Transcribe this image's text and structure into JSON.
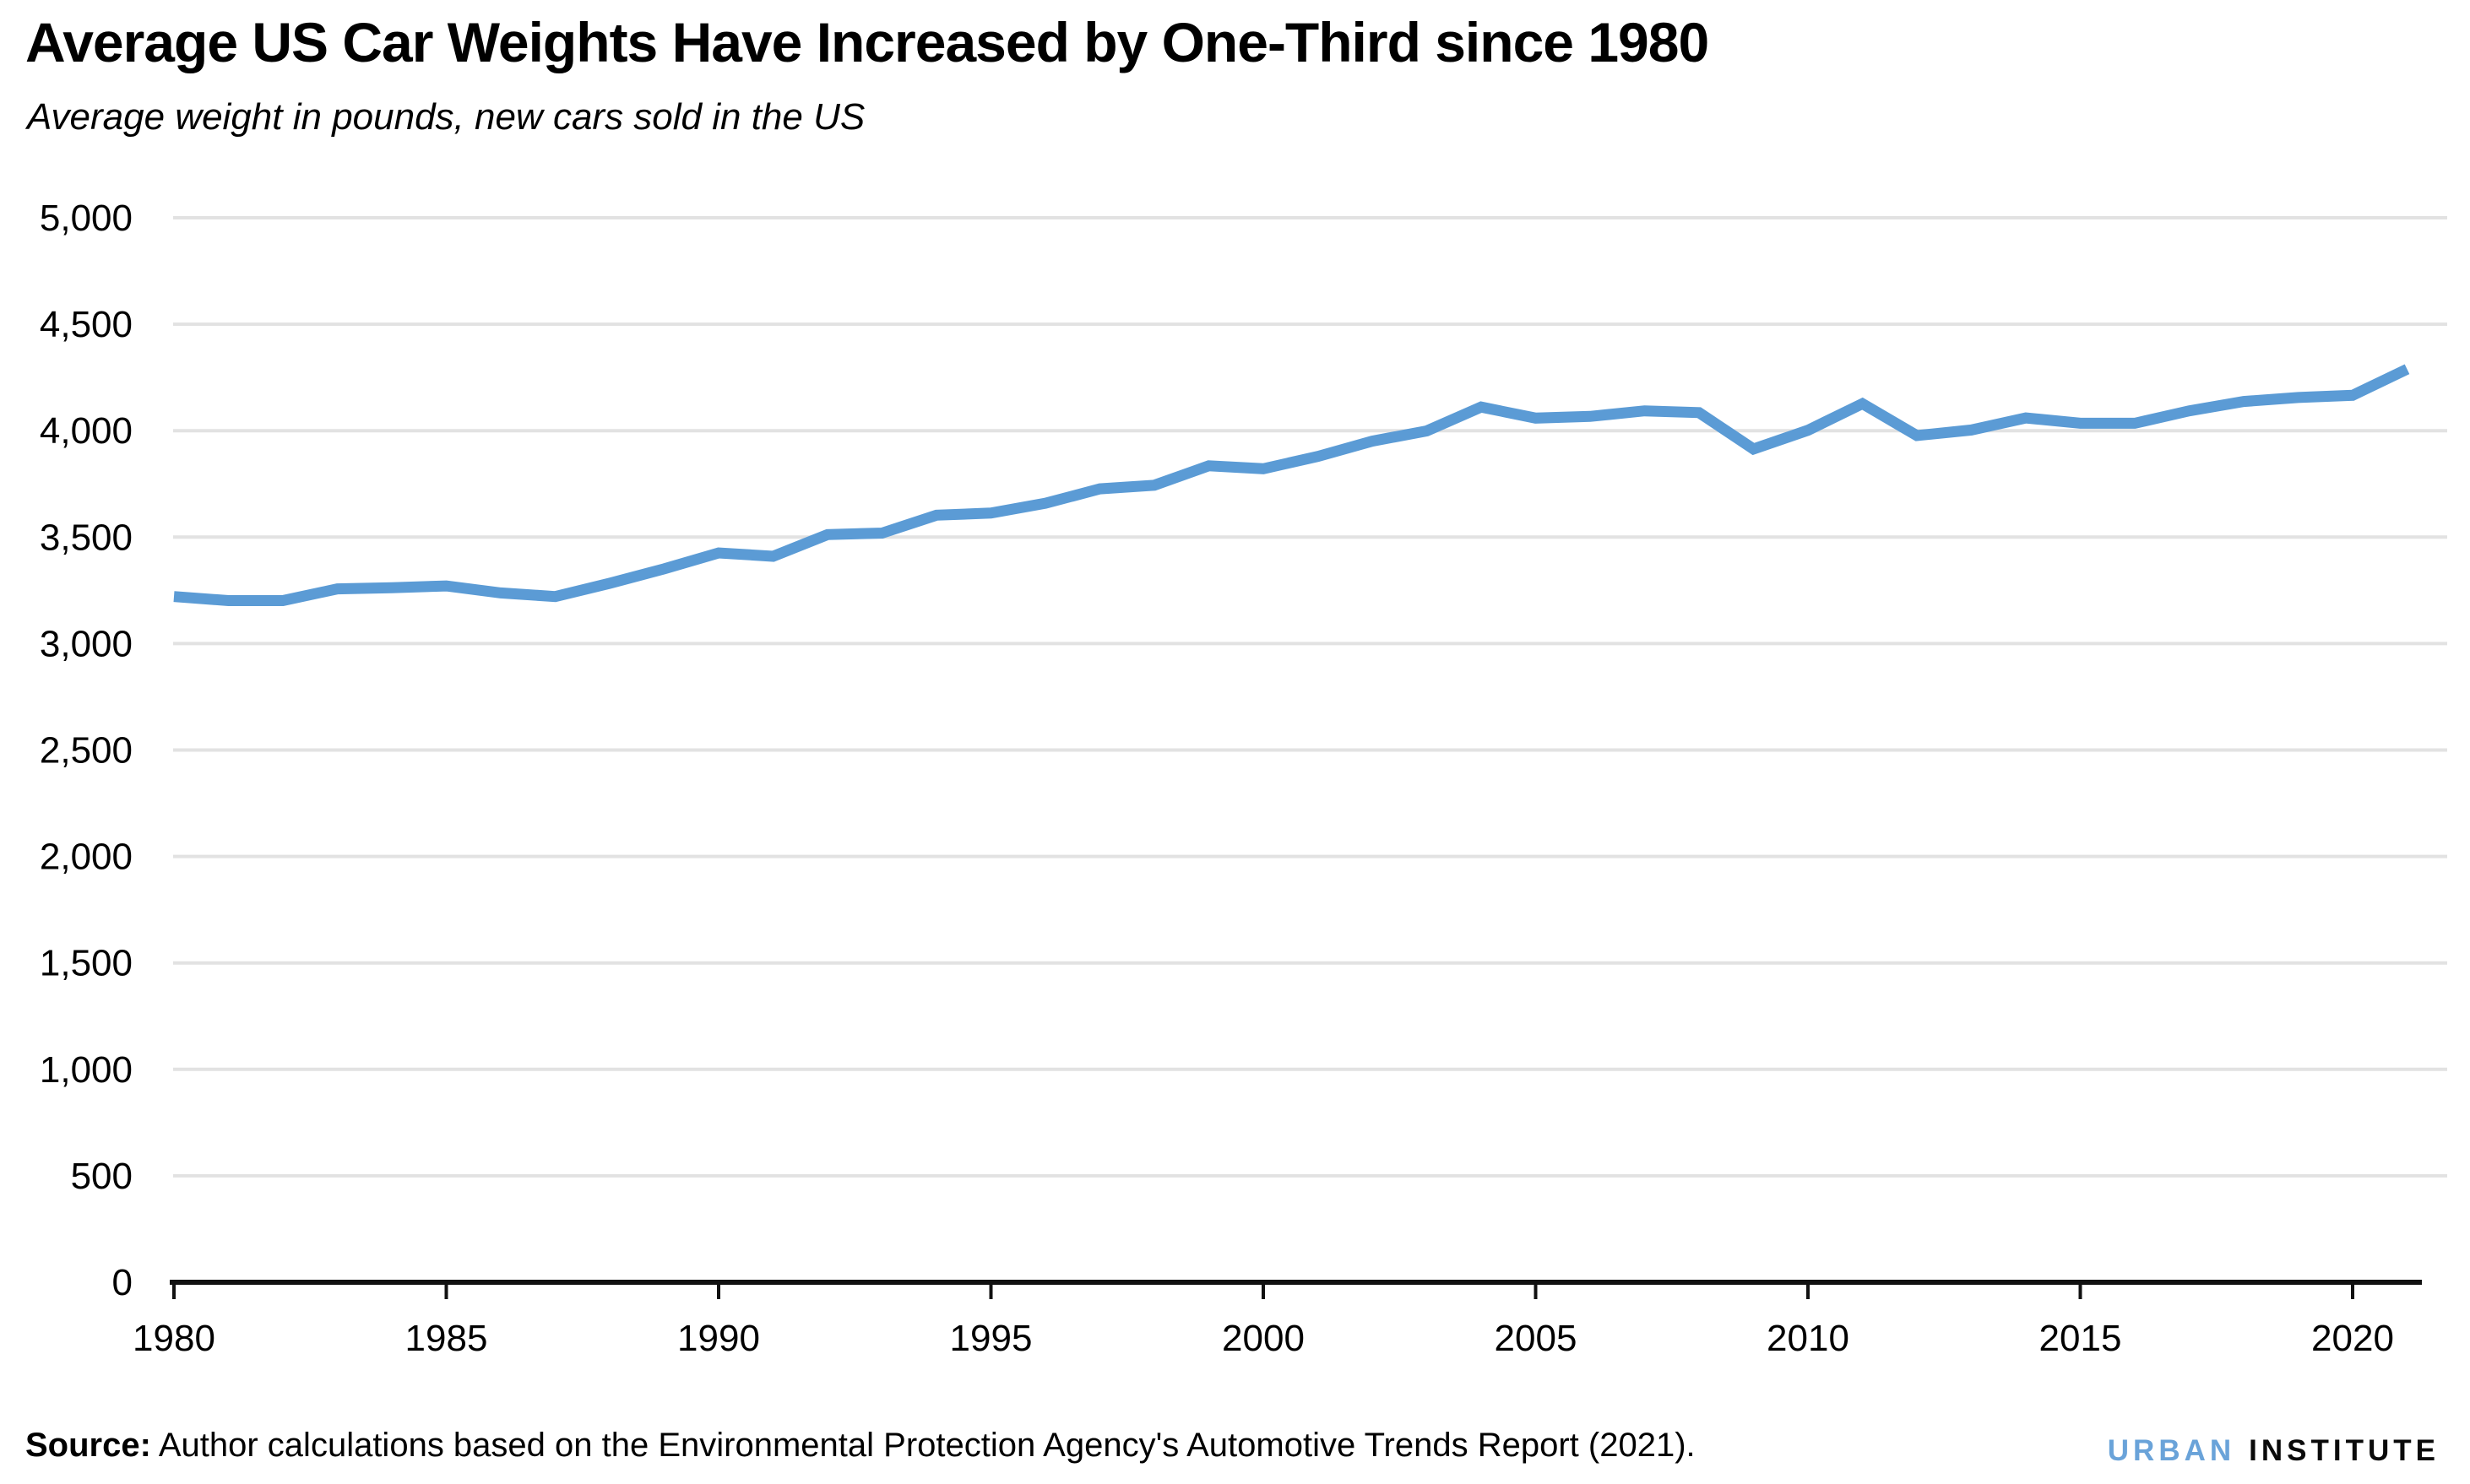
{
  "header": {
    "title": "Average US Car Weights Have Increased by One-Third since 1980",
    "subtitle": "Average weight in pounds, new cars sold in the US"
  },
  "chart_data": {
    "type": "line",
    "title": "Average US Car Weights Have Increased by One-Third since 1980",
    "subtitle": "Average weight in pounds, new cars sold in the US",
    "xlabel": "",
    "ylabel": "Average weight in pounds",
    "x": [
      1980,
      1981,
      1982,
      1983,
      1984,
      1985,
      1986,
      1987,
      1988,
      1989,
      1990,
      1991,
      1992,
      1993,
      1994,
      1995,
      1996,
      1997,
      1998,
      1999,
      2000,
      2001,
      2002,
      2003,
      2004,
      2005,
      2006,
      2007,
      2008,
      2009,
      2010,
      2011,
      2012,
      2013,
      2014,
      2015,
      2016,
      2017,
      2018,
      2019,
      2020,
      2021
    ],
    "series": [
      {
        "name": "Average weight of new cars sold in the US (pounds)",
        "values": [
          3221,
          3202,
          3202,
          3257,
          3262,
          3271,
          3238,
          3221,
          3283,
          3351,
          3426,
          3410,
          3512,
          3519,
          3603,
          3613,
          3659,
          3727,
          3744,
          3835,
          3821,
          3879,
          3951,
          3999,
          4111,
          4059,
          4067,
          4093,
          4085,
          3914,
          4002,
          4127,
          3977,
          4003,
          4060,
          4035,
          4035,
          4093,
          4137,
          4156,
          4166,
          4289
        ]
      }
    ],
    "xlim": [
      1980,
      2021
    ],
    "ylim": [
      0,
      5000
    ],
    "grid": "horizontal",
    "legend": "none",
    "yticks": [
      {
        "value": 0,
        "label": "0"
      },
      {
        "value": 500,
        "label": "500"
      },
      {
        "value": 1000,
        "label": "1,000"
      },
      {
        "value": 1500,
        "label": "1,500"
      },
      {
        "value": 2000,
        "label": "2,000"
      },
      {
        "value": 2500,
        "label": "2,500"
      },
      {
        "value": 3000,
        "label": "3,000"
      },
      {
        "value": 3500,
        "label": "3,500"
      },
      {
        "value": 4000,
        "label": "4,000"
      },
      {
        "value": 4500,
        "label": "4,500"
      },
      {
        "value": 5000,
        "label": "5,000"
      }
    ],
    "xticks": [
      {
        "value": 1980,
        "label": "1980"
      },
      {
        "value": 1985,
        "label": "1985"
      },
      {
        "value": 1990,
        "label": "1990"
      },
      {
        "value": 1995,
        "label": "1995"
      },
      {
        "value": 2000,
        "label": "2000"
      },
      {
        "value": 2005,
        "label": "2005"
      },
      {
        "value": 2010,
        "label": "2010"
      },
      {
        "value": 2015,
        "label": "2015"
      },
      {
        "value": 2020,
        "label": "2020"
      }
    ]
  },
  "footer": {
    "source_label": "Source:",
    "source_text": " Author calculations based on the Environmental Protection Agency's Automotive Trends Report (2021).",
    "logo": {
      "word1": "URBAN",
      "word2": "INSTITUTE"
    }
  },
  "colors": {
    "line_blue": "#5B9BD5",
    "logo_blue": "#6AA3D9",
    "logo_black": "#0A0A0A",
    "gridline_gray": "#E2E2E2",
    "axis_black": "#111111",
    "text_black": "#000000",
    "background": "#FFFFFF"
  }
}
